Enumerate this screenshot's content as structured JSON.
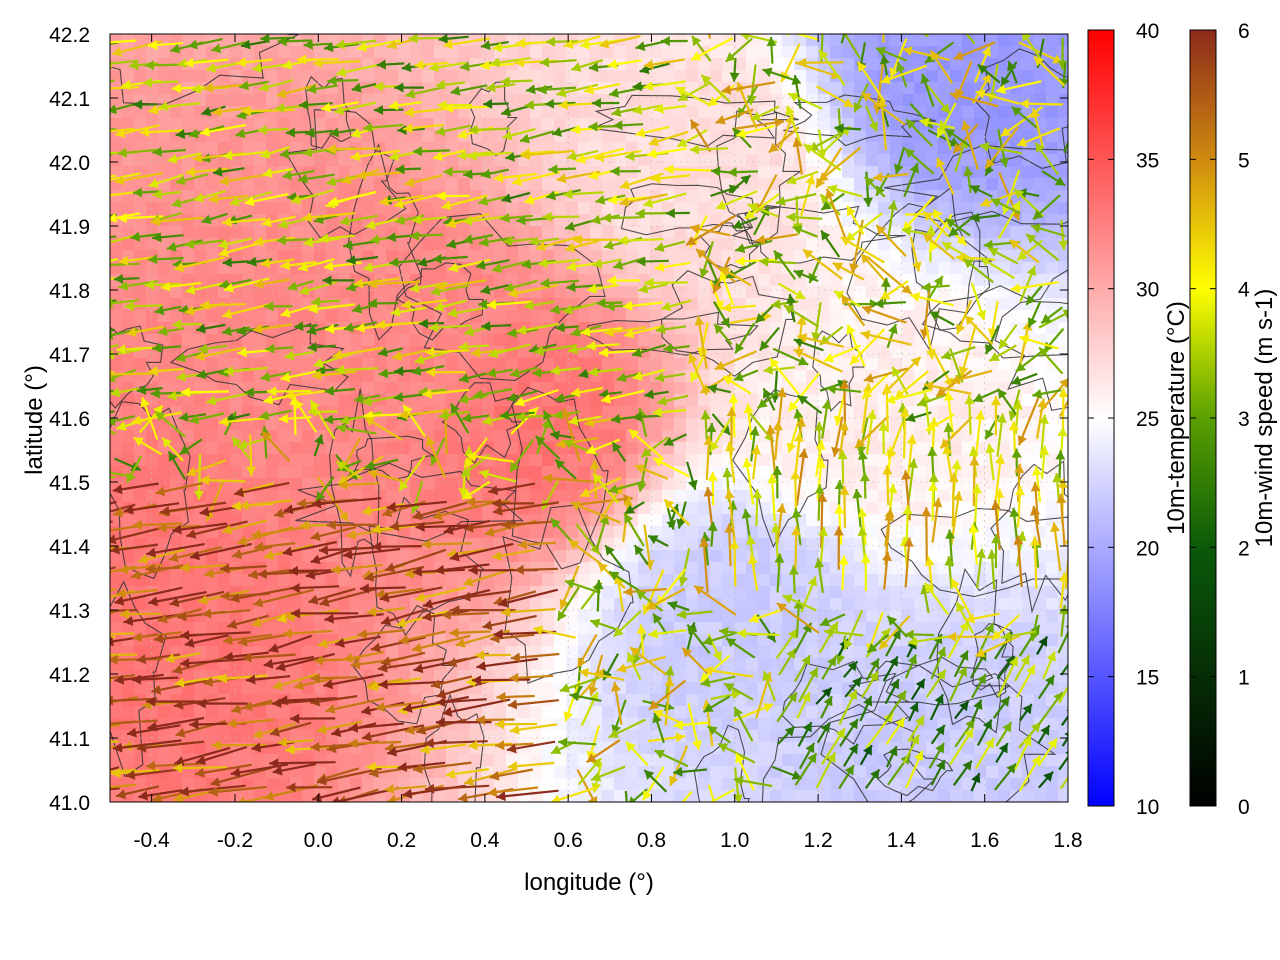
{
  "chart_data": {
    "type": "heatmap",
    "title": "",
    "xlabel": "longitude (°)",
    "ylabel": "latitude (°)",
    "xlim": [
      -0.5,
      1.8
    ],
    "ylim": [
      41.0,
      42.2
    ],
    "xticks": [
      -0.4,
      -0.2,
      0.0,
      0.2,
      0.4,
      0.6,
      0.8,
      1.0,
      1.2,
      1.4,
      1.6,
      1.8
    ],
    "xtick_labels": [
      "-0.4",
      "-0.2",
      "0.0",
      "0.2",
      "0.4",
      "0.6",
      "0.8",
      "1.0",
      "1.2",
      "1.4",
      "1.6",
      "1.8"
    ],
    "yticks": [
      41.0,
      41.1,
      41.2,
      41.3,
      41.4,
      41.5,
      41.6,
      41.7,
      41.8,
      41.9,
      42.0,
      42.1,
      42.2
    ],
    "ytick_labels": [
      "41.0",
      "41.1",
      "41.2",
      "41.3",
      "41.4",
      "41.5",
      "41.6",
      "41.7",
      "41.8",
      "41.9",
      "42.0",
      "42.1",
      "42.2"
    ],
    "grid": true,
    "temperature_colorbar": {
      "label": "10m-temperature (°C)",
      "range": [
        10,
        40
      ],
      "ticks": [
        10,
        15,
        20,
        25,
        30,
        35,
        40
      ],
      "tick_labels": [
        "10",
        "15",
        "20",
        "25",
        "30",
        "35",
        "40"
      ],
      "colors": [
        "#0000ff",
        "#ffffff",
        "#ff0000"
      ]
    },
    "wind_colorbar": {
      "label": "10m-wind speed (m s-1)",
      "range": [
        0,
        6
      ],
      "ticks": [
        0,
        1,
        2,
        3,
        4,
        5,
        6
      ],
      "tick_labels": [
        "0",
        "1",
        "2",
        "3",
        "4",
        "5",
        "6"
      ],
      "colors": [
        "#000000",
        "#0a5a0a",
        "#2a8a00",
        "#9acd00",
        "#ffff00",
        "#d08a10",
        "#8b2a1a"
      ]
    },
    "temperature_field": {
      "description_points": [
        {
          "lon": -0.4,
          "lat": 41.25,
          "temp": 33
        },
        {
          "lon": 0.2,
          "lat": 41.7,
          "temp": 32
        },
        {
          "lon": 0.5,
          "lat": 41.6,
          "temp": 33
        },
        {
          "lon": 1.0,
          "lat": 41.3,
          "temp": 22
        },
        {
          "lon": 1.55,
          "lat": 42.15,
          "temp": 19
        },
        {
          "lon": 1.5,
          "lat": 41.05,
          "temp": 22
        },
        {
          "lon": 1.3,
          "lat": 41.6,
          "temp": 26
        },
        {
          "lon": 0.9,
          "lat": 42.0,
          "temp": 27
        }
      ]
    },
    "wind_regions": [
      {
        "region": "south-west",
        "lon": [
          -0.5,
          0.6
        ],
        "lat": [
          41.0,
          41.5
        ],
        "direction": "westward",
        "speed": 5.5
      },
      {
        "region": "north-west",
        "lon": [
          -0.5,
          0.9
        ],
        "lat": [
          41.6,
          42.2
        ],
        "direction": "westward",
        "speed": 3.5
      },
      {
        "region": "south-east",
        "lon": [
          1.1,
          1.8
        ],
        "lat": [
          41.0,
          41.25
        ],
        "direction": "north-eastward",
        "speed": 2.8
      },
      {
        "region": "central-east",
        "lon": [
          0.9,
          1.8
        ],
        "lat": [
          41.3,
          41.6
        ],
        "direction": "northward",
        "speed": 4.0
      }
    ]
  }
}
